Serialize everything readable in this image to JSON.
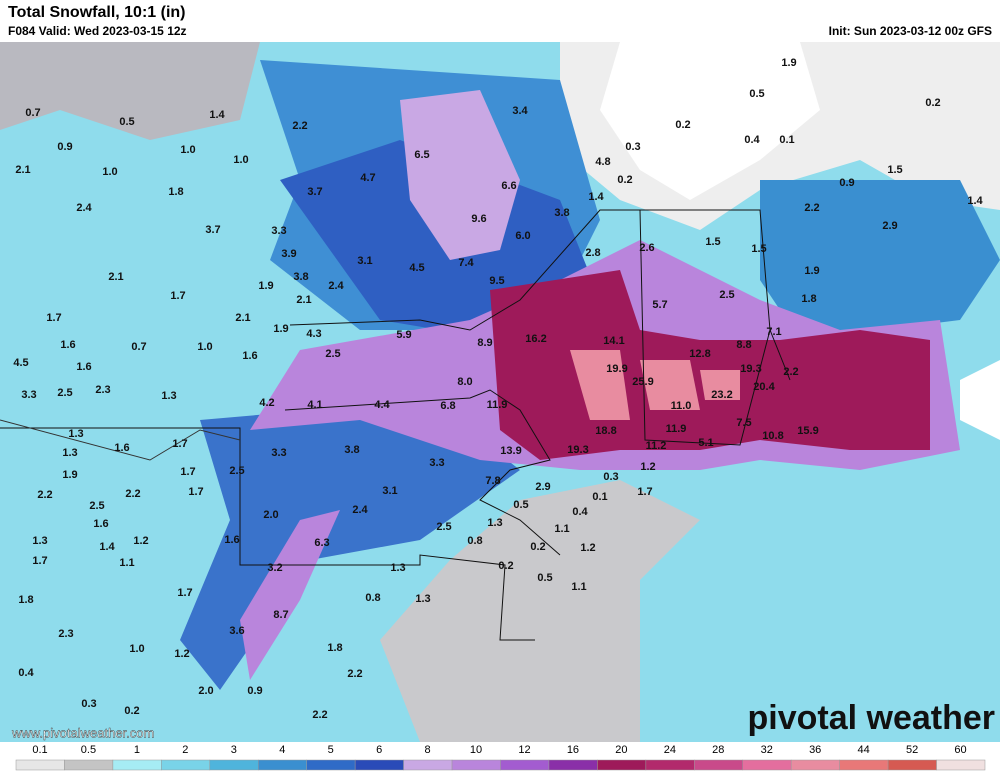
{
  "header": {
    "title": "Total Snowfall, 10:1 (in)",
    "valid": "F084 Valid: Wed 2023-03-15 12z",
    "init": "Init: Sun 2023-03-12 00z GFS"
  },
  "map": {
    "labels": [
      "0.7",
      "0.5",
      "1.4",
      "2.2",
      "3.4",
      "0.2",
      "0.4",
      "0.1",
      "0.5",
      "1.9",
      "0.2",
      "0.9",
      "1.0",
      "1.0",
      "6.5",
      "4.7",
      "4.8",
      "0.3",
      "0.2",
      "1.5",
      "0.9",
      "2.1",
      "1.0",
      "1.8",
      "3.7",
      "6.6",
      "1.4",
      "2.4",
      "9.6",
      "3.8",
      "2.2",
      "1.4",
      "3.7",
      "3.3",
      "6.0",
      "2.6",
      "1.5",
      "2.9",
      "1.5",
      "3.9",
      "3.1",
      "4.5",
      "7.4",
      "2.8",
      "1.9",
      "2.1",
      "3.8",
      "2.4",
      "9.5",
      "1.9",
      "2.5",
      "1.8",
      "1.7",
      "2.1",
      "5.7",
      "1.7",
      "2.1",
      "1.9",
      "4.3",
      "5.9",
      "7.1",
      "1.6",
      "0.7",
      "1.0",
      "16.2",
      "8.9",
      "14.1",
      "2.5",
      "1.6",
      "12.8",
      "8.8",
      "4.5",
      "1.6",
      "19.9",
      "19.3",
      "2.2",
      "3.3",
      "2.5",
      "2.3",
      "1.3",
      "8.0",
      "25.9",
      "20.4",
      "4.2",
      "4.1",
      "4.4",
      "6.8",
      "11.9",
      "23.2",
      "11.0",
      "1.3",
      "1.6",
      "1.7",
      "18.8",
      "11.9",
      "7.5",
      "10.8",
      "15.9",
      "1.3",
      "3.3",
      "3.8",
      "13.9",
      "19.3",
      "11.2",
      "5.1",
      "1.9",
      "3.3",
      "1.7",
      "2.5",
      "7.8",
      "1.2",
      "0.3",
      "2.2",
      "2.5",
      "2.2",
      "1.7",
      "3.1",
      "2.9",
      "0.1",
      "1.7",
      "1.6",
      "2.0",
      "2.4",
      "0.5",
      "0.4",
      "2.5",
      "1.3",
      "1.3",
      "1.4",
      "1.2",
      "1.6",
      "6.3",
      "0.8",
      "1.1",
      "0.2",
      "1.2",
      "1.7",
      "1.1",
      "3.2",
      "0.2",
      "1.3",
      "0.5",
      "1.8",
      "1.7",
      "0.8",
      "1.3",
      "1.1",
      "2.3",
      "8.7",
      "3.6",
      "1.0",
      "1.2",
      "1.8",
      "0.4",
      "2.2",
      "2.0",
      "0.9",
      "0.3",
      "0.2",
      "2.2"
    ]
  },
  "legend": {
    "ticks": [
      0.1,
      0.5,
      1,
      2,
      3,
      4,
      5,
      6,
      8,
      10,
      12,
      16,
      20,
      24,
      28,
      32,
      36,
      44,
      52,
      60
    ],
    "colors": [
      "#e6e6e6",
      "#c4c4c4",
      "#a6ecf4",
      "#79d3e8",
      "#4fb4dc",
      "#3a8fd0",
      "#2f6bc7",
      "#2a4bb8",
      "#c9a8e4",
      "#b985dc",
      "#a35cd0",
      "#8a2fa8",
      "#9e1a5a",
      "#b22a6c",
      "#c94a8a",
      "#e46e9e",
      "#e88ca0",
      "#e87878",
      "#d65a52",
      "#f0e0e0"
    ]
  },
  "footer": {
    "url": "www.pivotalweather.com",
    "brand": "pivotal weather"
  }
}
